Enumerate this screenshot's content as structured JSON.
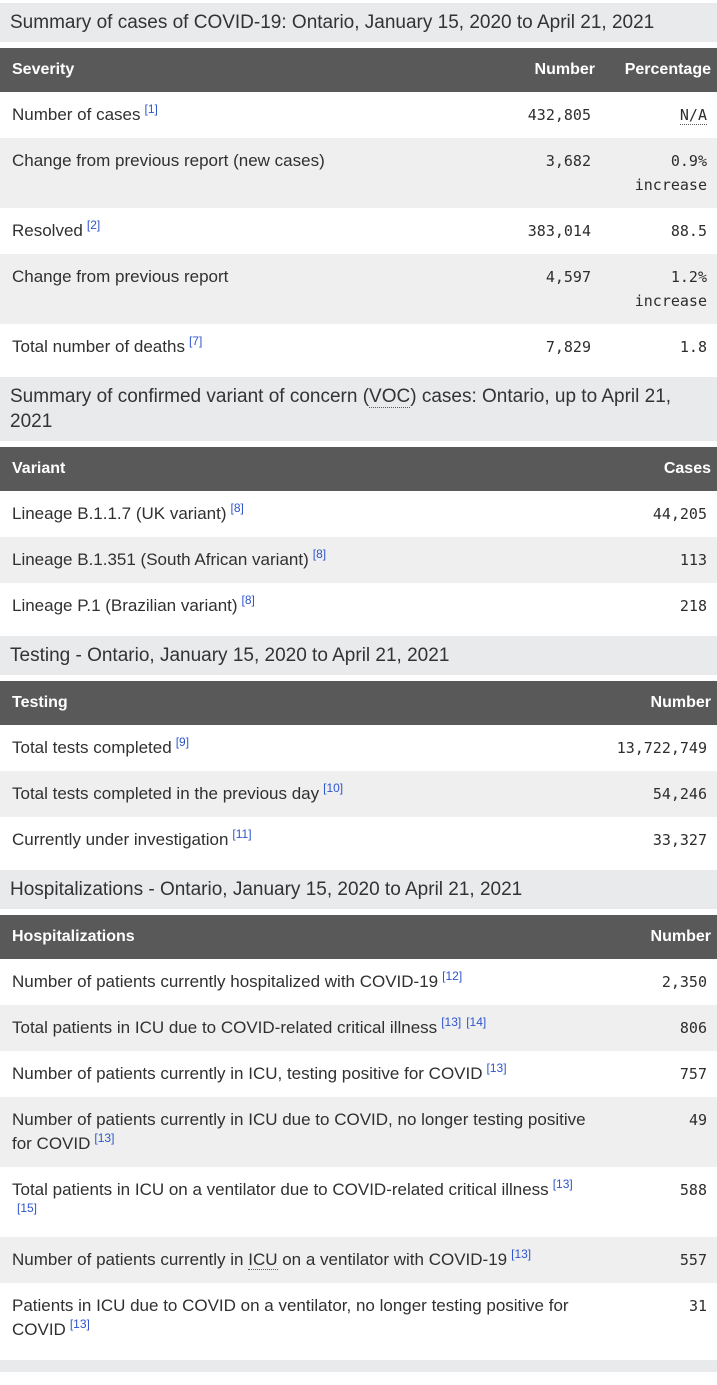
{
  "colors": {
    "table_header_bg": "#595959",
    "table_header_text": "#ffffff",
    "stripe_row_bg": "#efefef",
    "section_title_bg": "#e9eaec",
    "footnote_link_blue": "#2d55cd",
    "body_text": "#303030"
  },
  "sections": [
    {
      "title_parts": [
        {
          "text": "Summary of cases of COVID-19: Ontario, January 15, 2020 to April 21, 2021"
        }
      ],
      "columns": [
        "Severity",
        "Number",
        "Percentage"
      ],
      "rows": [
        {
          "label_parts": [
            {
              "text": "Number of cases"
            }
          ],
          "footnotes": [
            "[1]"
          ],
          "values": [
            {
              "text": "432,805"
            },
            {
              "text": "N/A",
              "abbr": true
            }
          ]
        },
        {
          "label_parts": [
            {
              "text": "Change from previous report (new cases)"
            }
          ],
          "footnotes": [],
          "values": [
            {
              "text": "3,682"
            },
            {
              "text": "0.9% increase"
            }
          ]
        },
        {
          "label_parts": [
            {
              "text": "Resolved"
            }
          ],
          "footnotes": [
            "[2]"
          ],
          "values": [
            {
              "text": "383,014"
            },
            {
              "text": "88.5"
            }
          ]
        },
        {
          "label_parts": [
            {
              "text": "Change from previous report"
            }
          ],
          "footnotes": [],
          "values": [
            {
              "text": "4,597"
            },
            {
              "text": "1.2% increase"
            }
          ]
        },
        {
          "label_parts": [
            {
              "text": "Total number of deaths"
            }
          ],
          "footnotes": [
            "[7]"
          ],
          "values": [
            {
              "text": "7,829"
            },
            {
              "text": "1.8"
            }
          ]
        }
      ]
    },
    {
      "title_parts": [
        {
          "text": "Summary of confirmed variant of concern ("
        },
        {
          "text": "VOC",
          "abbr": true
        },
        {
          "text": ") cases: Ontario, up to April 21, 2021"
        }
      ],
      "columns": [
        "Variant",
        "Cases"
      ],
      "rows": [
        {
          "label_parts": [
            {
              "text": "Lineage B.1.1.7 (UK variant)"
            }
          ],
          "footnotes": [
            "[8]"
          ],
          "values": [
            {
              "text": "44,205"
            }
          ]
        },
        {
          "label_parts": [
            {
              "text": "Lineage B.1.351 (South African variant)"
            }
          ],
          "footnotes": [
            "[8]"
          ],
          "values": [
            {
              "text": "113"
            }
          ]
        },
        {
          "label_parts": [
            {
              "text": "Lineage P.1 (Brazilian variant)"
            }
          ],
          "footnotes": [
            "[8]"
          ],
          "values": [
            {
              "text": "218"
            }
          ]
        }
      ]
    },
    {
      "title_parts": [
        {
          "text": "Testing - Ontario, January 15, 2020 to April 21, 2021"
        }
      ],
      "columns": [
        "Testing",
        "Number"
      ],
      "rows": [
        {
          "label_parts": [
            {
              "text": "Total tests completed"
            }
          ],
          "footnotes": [
            "[9]"
          ],
          "values": [
            {
              "text": "13,722,749"
            }
          ]
        },
        {
          "label_parts": [
            {
              "text": "Total tests completed in the previous day"
            }
          ],
          "footnotes": [
            "[10]"
          ],
          "values": [
            {
              "text": "54,246"
            }
          ]
        },
        {
          "label_parts": [
            {
              "text": "Currently under investigation"
            }
          ],
          "footnotes": [
            "[11]"
          ],
          "values": [
            {
              "text": "33,327"
            }
          ]
        }
      ]
    },
    {
      "title_parts": [
        {
          "text": "Hospitalizations - Ontario, January 15, 2020 to April 21, 2021"
        }
      ],
      "columns": [
        "Hospitalizations",
        "Number"
      ],
      "rows": [
        {
          "label_parts": [
            {
              "text": "Number of patients currently hospitalized with COVID-19"
            }
          ],
          "footnotes": [
            "[12]"
          ],
          "values": [
            {
              "text": "2,350"
            }
          ]
        },
        {
          "label_parts": [
            {
              "text": "Total patients in ICU due to COVID-related critical illness"
            }
          ],
          "footnotes": [
            "[13]",
            "[14]"
          ],
          "values": [
            {
              "text": "806"
            }
          ]
        },
        {
          "label_parts": [
            {
              "text": "Number of patients currently in ICU, testing positive for COVID"
            }
          ],
          "footnotes": [
            "[13]"
          ],
          "values": [
            {
              "text": "757"
            }
          ]
        },
        {
          "label_parts": [
            {
              "text": "Number of patients currently in ICU due to COVID, no longer testing positive for COVID"
            }
          ],
          "footnotes": [
            "[13]"
          ],
          "values": [
            {
              "text": "49"
            }
          ]
        },
        {
          "label_parts": [
            {
              "text": "Total patients in ICU on a ventilator due to COVID-related critical illness"
            }
          ],
          "footnotes": [
            "[13]",
            "[15]"
          ],
          "values": [
            {
              "text": "588"
            }
          ]
        },
        {
          "label_parts": [
            {
              "text": "Number of patients currently in "
            },
            {
              "text": "ICU",
              "abbr": true
            },
            {
              "text": " on a ventilator with COVID-19"
            }
          ],
          "footnotes": [
            "[13]"
          ],
          "values": [
            {
              "text": "557"
            }
          ]
        },
        {
          "label_parts": [
            {
              "text": "Patients in ICU due to COVID on a ventilator, no longer testing positive for COVID"
            }
          ],
          "footnotes": [
            "[13]"
          ],
          "values": [
            {
              "text": "31"
            }
          ]
        }
      ]
    }
  ]
}
